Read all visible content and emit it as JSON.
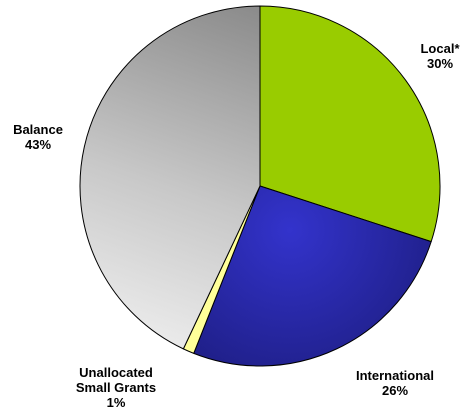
{
  "chart_data": {
    "type": "pie",
    "slices": [
      {
        "label": "Local*",
        "value": 30,
        "percent_label": "30%",
        "color": "#99CC00"
      },
      {
        "label": "International",
        "value": 26,
        "percent_label": "26%",
        "color": "#27279E"
      },
      {
        "label": "Unallocated Small Grants",
        "label_lines": [
          "Unallocated",
          "Small Grants"
        ],
        "value": 1,
        "percent_label": "1%",
        "color": "#FFFF99"
      },
      {
        "label": "Balance",
        "value": 43,
        "percent_label": "43%",
        "color": "#C0C0C0"
      }
    ]
  }
}
